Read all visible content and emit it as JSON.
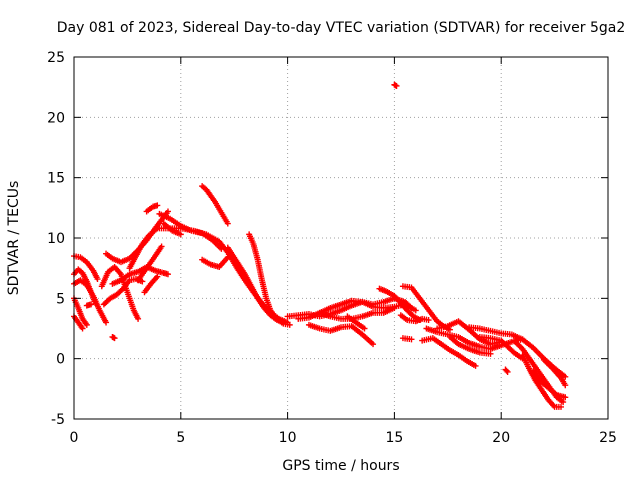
{
  "chart_data": {
    "type": "scatter",
    "title": "Day 081 of 2023, Sidereal Day-to-day VTEC variation (SDTVAR) for receiver 5ga2",
    "xlabel": "GPS time / hours",
    "ylabel": "SDTVAR / TECUs",
    "xlim": [
      0,
      25
    ],
    "ylim": [
      -5,
      25
    ],
    "xticks": [
      0,
      5,
      10,
      15,
      20,
      25
    ],
    "yticks": [
      -5,
      0,
      5,
      10,
      15,
      20,
      25
    ],
    "grid": true,
    "marker": "+",
    "series": [
      {
        "name": "SDTVAR",
        "color": "#ff0000",
        "tracks": [
          [
            [
              0.0,
              8.5
            ],
            [
              0.3,
              8.4
            ],
            [
              0.6,
              8.0
            ],
            [
              0.9,
              7.3
            ],
            [
              1.1,
              6.6
            ]
          ],
          [
            [
              0.0,
              7.0
            ],
            [
              0.2,
              7.4
            ],
            [
              0.4,
              7.1
            ],
            [
              0.6,
              6.4
            ],
            [
              0.8,
              5.5
            ],
            [
              1.0,
              4.6
            ]
          ],
          [
            [
              0.0,
              6.2
            ],
            [
              0.3,
              6.5
            ],
            [
              0.6,
              6.1
            ],
            [
              0.9,
              5.2
            ],
            [
              1.2,
              4.0
            ],
            [
              1.5,
              3.0
            ]
          ],
          [
            [
              0.0,
              5.0
            ],
            [
              0.2,
              4.2
            ],
            [
              0.4,
              3.3
            ],
            [
              0.6,
              2.8
            ]
          ],
          [
            [
              0.0,
              3.5
            ],
            [
              0.2,
              3.0
            ],
            [
              0.4,
              2.5
            ]
          ],
          [
            [
              0.6,
              4.4
            ],
            [
              0.8,
              4.5
            ]
          ],
          [
            [
              1.8,
              1.8
            ],
            [
              1.9,
              1.7
            ]
          ],
          [
            [
              1.3,
              6.0
            ],
            [
              1.6,
              7.2
            ],
            [
              1.9,
              7.6
            ],
            [
              2.2,
              7.0
            ],
            [
              2.5,
              5.5
            ],
            [
              2.8,
              4.0
            ],
            [
              3.0,
              3.3
            ]
          ],
          [
            [
              1.4,
              4.5
            ],
            [
              1.7,
              5.0
            ],
            [
              2.0,
              5.3
            ],
            [
              2.3,
              5.8
            ],
            [
              2.6,
              6.5
            ],
            [
              2.9,
              6.6
            ],
            [
              3.2,
              6.4
            ]
          ],
          [
            [
              1.8,
              6.2
            ],
            [
              2.2,
              6.5
            ],
            [
              2.6,
              7.0
            ],
            [
              3.0,
              7.2
            ],
            [
              3.4,
              7.6
            ],
            [
              3.8,
              7.3
            ],
            [
              4.2,
              7.1
            ],
            [
              4.4,
              7.0
            ]
          ],
          [
            [
              1.5,
              8.7
            ],
            [
              1.8,
              8.3
            ],
            [
              2.2,
              8.0
            ],
            [
              2.6,
              8.3
            ],
            [
              3.0,
              9.0
            ],
            [
              3.4,
              9.8
            ],
            [
              3.8,
              10.8
            ],
            [
              4.1,
              11.5
            ],
            [
              4.4,
              12.2
            ]
          ],
          [
            [
              2.6,
              7.5
            ],
            [
              2.9,
              8.5
            ],
            [
              3.2,
              9.5
            ],
            [
              3.5,
              10.2
            ],
            [
              3.9,
              10.8
            ],
            [
              4.4,
              10.8
            ],
            [
              5.0,
              10.8
            ],
            [
              5.6,
              10.6
            ],
            [
              6.2,
              10.3
            ],
            [
              6.8,
              9.7
            ],
            [
              7.2,
              8.8
            ],
            [
              7.6,
              7.6
            ],
            [
              8.0,
              6.5
            ],
            [
              8.4,
              5.5
            ],
            [
              8.8,
              4.6
            ],
            [
              9.2,
              3.8
            ],
            [
              9.6,
              3.3
            ],
            [
              10.0,
              3.0
            ]
          ],
          [
            [
              3.0,
              6.5
            ],
            [
              3.4,
              7.5
            ],
            [
              3.8,
              8.5
            ],
            [
              4.1,
              9.3
            ]
          ],
          [
            [
              3.3,
              5.5
            ],
            [
              3.6,
              6.2
            ],
            [
              3.9,
              6.8
            ]
          ],
          [
            [
              3.4,
              12.2
            ],
            [
              3.7,
              12.6
            ],
            [
              3.9,
              12.7
            ]
          ],
          [
            [
              4.0,
              12.0
            ],
            [
              4.5,
              11.6
            ],
            [
              5.0,
              11.0
            ],
            [
              5.5,
              10.6
            ],
            [
              6.0,
              10.4
            ],
            [
              6.5,
              9.8
            ],
            [
              6.9,
              9.1
            ]
          ],
          [
            [
              4.2,
              11.2
            ],
            [
              4.6,
              10.6
            ],
            [
              5.0,
              10.3
            ]
          ],
          [
            [
              6.0,
              14.3
            ],
            [
              6.2,
              14.0
            ],
            [
              6.4,
              13.5
            ],
            [
              6.6,
              13.0
            ],
            [
              6.8,
              12.4
            ],
            [
              7.0,
              11.8
            ],
            [
              7.2,
              11.2
            ]
          ],
          [
            [
              6.0,
              8.2
            ],
            [
              6.4,
              7.8
            ],
            [
              6.8,
              7.6
            ],
            [
              7.2,
              8.4
            ]
          ],
          [
            [
              7.2,
              9.2
            ],
            [
              7.6,
              8.1
            ],
            [
              8.0,
              7.0
            ],
            [
              8.3,
              6.0
            ],
            [
              8.6,
              5.0
            ],
            [
              8.9,
              4.2
            ],
            [
              9.2,
              3.6
            ],
            [
              9.5,
              3.2
            ],
            [
              9.8,
              3.0
            ]
          ],
          [
            [
              8.2,
              10.3
            ],
            [
              8.4,
              9.5
            ],
            [
              8.6,
              8.2
            ],
            [
              8.8,
              6.5
            ],
            [
              9.0,
              5.0
            ],
            [
              9.2,
              4.0
            ],
            [
              9.5,
              3.3
            ],
            [
              9.8,
              2.9
            ],
            [
              10.1,
              2.8
            ]
          ],
          [
            [
              10.0,
              3.5
            ],
            [
              10.5,
              3.6
            ],
            [
              11.0,
              3.7
            ],
            [
              11.5,
              3.5
            ],
            [
              12.0,
              3.7
            ],
            [
              12.5,
              4.0
            ],
            [
              13.0,
              4.4
            ],
            [
              13.5,
              4.7
            ],
            [
              14.0,
              4.5
            ],
            [
              14.5,
              4.7
            ],
            [
              15.0,
              5.0
            ],
            [
              15.5,
              4.7
            ],
            [
              15.8,
              4.2
            ]
          ],
          [
            [
              10.5,
              3.3
            ],
            [
              11.0,
              3.4
            ],
            [
              11.5,
              3.8
            ],
            [
              12.0,
              4.2
            ],
            [
              12.5,
              4.5
            ],
            [
              13.0,
              4.8
            ],
            [
              13.5,
              4.7
            ],
            [
              14.0,
              4.3
            ],
            [
              14.5,
              4.2
            ],
            [
              15.0,
              4.3
            ],
            [
              15.5,
              4.5
            ],
            [
              16.0,
              4.0
            ]
          ],
          [
            [
              11.5,
              3.8
            ],
            [
              12.0,
              3.5
            ],
            [
              12.5,
              3.3
            ],
            [
              13.0,
              3.3
            ],
            [
              13.5,
              3.5
            ],
            [
              14.0,
              3.8
            ],
            [
              14.5,
              3.8
            ],
            [
              15.0,
              4.2
            ]
          ],
          [
            [
              11.0,
              2.8
            ],
            [
              11.5,
              2.5
            ],
            [
              12.0,
              2.3
            ],
            [
              12.5,
              2.6
            ],
            [
              13.0,
              2.7
            ],
            [
              13.5,
              2.0
            ],
            [
              14.0,
              1.2
            ]
          ],
          [
            [
              12.8,
              3.5
            ],
            [
              13.2,
              3.0
            ],
            [
              13.6,
              2.5
            ]
          ],
          [
            [
              14.3,
              5.8
            ],
            [
              14.6,
              5.6
            ],
            [
              15.0,
              5.2
            ],
            [
              15.3,
              4.6
            ],
            [
              15.6,
              4.0
            ],
            [
              15.9,
              3.5
            ],
            [
              16.2,
              3.2
            ]
          ],
          [
            [
              15.4,
              6.0
            ],
            [
              15.8,
              5.9
            ],
            [
              16.1,
              5.2
            ],
            [
              16.4,
              4.5
            ],
            [
              16.7,
              3.8
            ],
            [
              17.0,
              3.1
            ],
            [
              17.3,
              2.7
            ],
            [
              17.6,
              2.4
            ]
          ],
          [
            [
              15.3,
              3.6
            ],
            [
              15.6,
              3.2
            ],
            [
              16.0,
              3.1
            ],
            [
              16.3,
              3.3
            ],
            [
              16.6,
              3.2
            ]
          ],
          [
            [
              15.4,
              1.7
            ],
            [
              15.8,
              1.6
            ]
          ],
          [
            [
              15.0,
              22.7
            ],
            [
              15.1,
              22.6
            ]
          ],
          [
            [
              16.5,
              2.5
            ],
            [
              17.0,
              2.2
            ],
            [
              17.5,
              2.0
            ],
            [
              18.0,
              1.8
            ],
            [
              18.5,
              1.3
            ],
            [
              19.0,
              1.0
            ],
            [
              19.5,
              0.8
            ],
            [
              20.0,
              1.1
            ],
            [
              20.5,
              1.4
            ],
            [
              21.0,
              1.6
            ]
          ],
          [
            [
              16.3,
              1.5
            ],
            [
              16.8,
              1.7
            ],
            [
              17.2,
              1.2
            ],
            [
              17.6,
              0.7
            ],
            [
              18.0,
              0.3
            ],
            [
              18.4,
              -0.2
            ],
            [
              18.8,
              -0.6
            ]
          ],
          [
            [
              17.0,
              2.5
            ],
            [
              17.5,
              2.7
            ],
            [
              18.0,
              3.1
            ],
            [
              18.5,
              2.4
            ],
            [
              19.0,
              1.6
            ],
            [
              19.5,
              1.2
            ],
            [
              20.0,
              1.4
            ]
          ],
          [
            [
              17.6,
              1.8
            ],
            [
              18.0,
              1.2
            ],
            [
              18.5,
              0.8
            ],
            [
              19.0,
              0.5
            ],
            [
              19.5,
              0.4
            ]
          ],
          [
            [
              18.5,
              2.6
            ],
            [
              19.0,
              2.5
            ],
            [
              19.5,
              2.3
            ],
            [
              20.0,
              2.1
            ],
            [
              20.5,
              2.0
            ],
            [
              21.0,
              1.6
            ],
            [
              21.5,
              0.9
            ],
            [
              22.0,
              0.0
            ],
            [
              22.5,
              -0.8
            ],
            [
              23.0,
              -1.5
            ]
          ],
          [
            [
              19.0,
              1.8
            ],
            [
              19.5,
              1.7
            ],
            [
              20.0,
              1.5
            ],
            [
              20.3,
              1.0
            ],
            [
              20.6,
              0.5
            ],
            [
              21.0,
              0.0
            ]
          ],
          [
            [
              20.2,
              -0.9
            ],
            [
              20.3,
              -1.1
            ]
          ],
          [
            [
              20.6,
              1.5
            ],
            [
              21.0,
              0.8
            ],
            [
              21.4,
              -0.2
            ],
            [
              21.8,
              -1.2
            ],
            [
              22.2,
              -2.2
            ],
            [
              22.6,
              -3.2
            ],
            [
              22.9,
              -3.6
            ]
          ],
          [
            [
              21.0,
              0.3
            ],
            [
              21.3,
              -0.8
            ],
            [
              21.6,
              -1.8
            ],
            [
              21.9,
              -2.6
            ],
            [
              22.2,
              -3.4
            ],
            [
              22.5,
              -4.0
            ],
            [
              22.8,
              -4.0
            ]
          ],
          [
            [
              21.5,
              -1.0
            ],
            [
              21.8,
              -1.8
            ],
            [
              22.2,
              -2.4
            ],
            [
              22.6,
              -3.0
            ],
            [
              23.0,
              -3.2
            ]
          ],
          [
            [
              22.0,
              -0.1
            ],
            [
              22.4,
              -0.8
            ],
            [
              22.8,
              -1.6
            ],
            [
              23.0,
              -2.2
            ]
          ]
        ]
      }
    ]
  }
}
